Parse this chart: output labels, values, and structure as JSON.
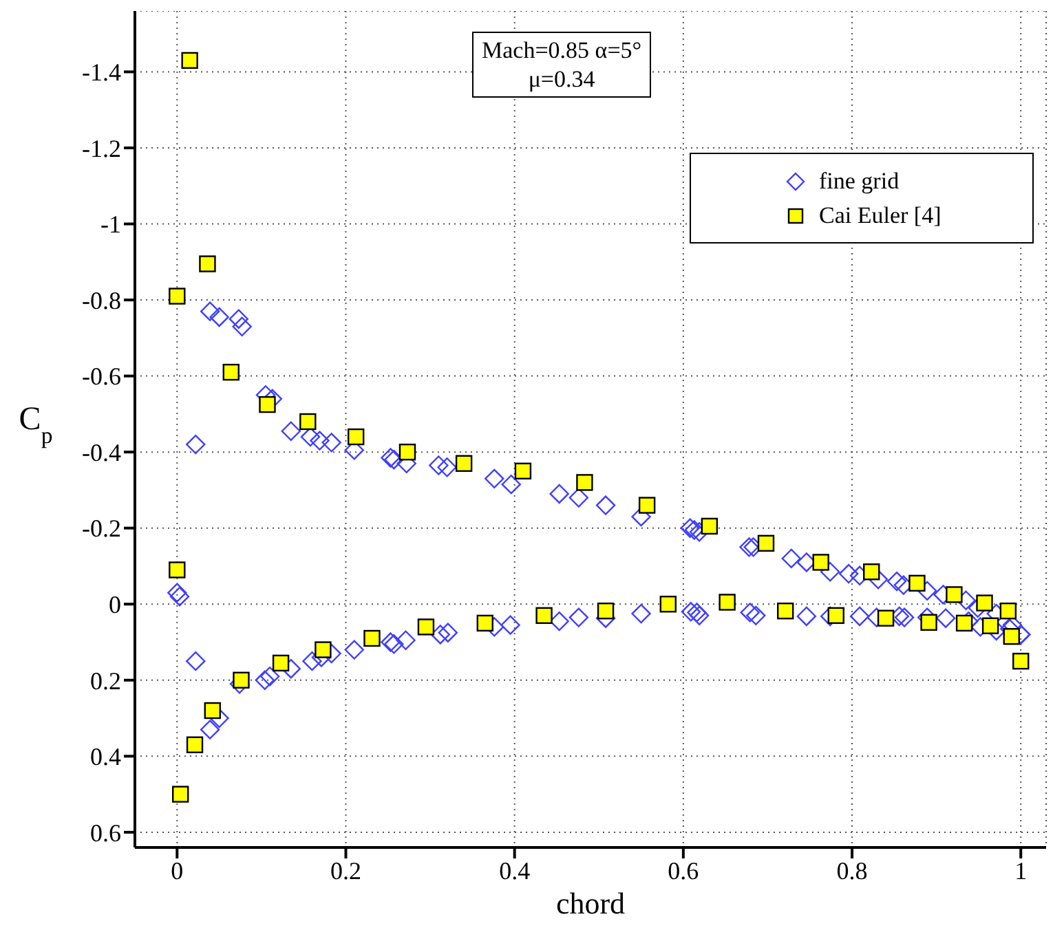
{
  "chart_data": {
    "type": "scatter",
    "xlabel": "chord",
    "ylabel": "C$_{p}$",
    "annotations": [
      "Mach=0.85  α=5°",
      "μ=0.34"
    ],
    "xlim": [
      -0.05,
      1.03
    ],
    "xticks": [
      0,
      0.2,
      0.4,
      0.6,
      0.8,
      1
    ],
    "ylim": [
      0.64,
      -1.56
    ],
    "yticks": [
      -1.4,
      -1.2,
      -1,
      -0.8,
      -0.6,
      -0.4,
      -0.2,
      0,
      0.2,
      0.4,
      0.6
    ],
    "grid": true,
    "legend": "top right",
    "series": [
      {
        "name": "fine grid",
        "color": "#4040ff",
        "marker": "diamond",
        "x": [
          0.039,
          0.05,
          0.073,
          0.077,
          0.105,
          0.113,
          0.135,
          0.158,
          0.169,
          0.183,
          0.022,
          0.21,
          0.253,
          0.257,
          0.272,
          0.31,
          0.32,
          0.376,
          0.396,
          0.453,
          0.476,
          0.508,
          0.55,
          0.608,
          0.613,
          0.619,
          0.678,
          0.683,
          0.728,
          0.746,
          0.774,
          0.796,
          0.809,
          0.831,
          0.853,
          0.861,
          0.889,
          0.908,
          0.935,
          0.949,
          0.971,
          0.99,
          1.0,
          0,
          0.003,
          0.022,
          0.039,
          0.05,
          0.074,
          0.104,
          0.11,
          0.135,
          0.16,
          0.171,
          0.183,
          0.21,
          0.253,
          0.257,
          0.271,
          0.312,
          0.321,
          0.376,
          0.395,
          0.453,
          0.476,
          0.508,
          0.55,
          0.609,
          0.616,
          0.619,
          0.679,
          0.686,
          0.746,
          0.774,
          0.809,
          0.829,
          0.856,
          0.862,
          0.889,
          0.911,
          0.938,
          0.952,
          0.971,
          0.987,
          1.0
        ],
        "values": [
          -0.77,
          -0.755,
          -0.75,
          -0.73,
          -0.55,
          -0.54,
          -0.455,
          -0.44,
          -0.43,
          -0.425,
          -0.42,
          -0.405,
          -0.385,
          -0.38,
          -0.37,
          -0.365,
          -0.36,
          -0.33,
          -0.315,
          -0.29,
          -0.28,
          -0.26,
          -0.23,
          -0.2,
          -0.195,
          -0.19,
          -0.15,
          -0.15,
          -0.12,
          -0.11,
          -0.085,
          -0.08,
          -0.075,
          -0.065,
          -0.06,
          -0.05,
          -0.035,
          -0.025,
          -0.01,
          0.01,
          0.025,
          0.055,
          0.08,
          -0.03,
          -0.02,
          0.15,
          0.33,
          0.3,
          0.21,
          0.2,
          0.19,
          0.17,
          0.15,
          0.14,
          0.13,
          0.12,
          0.1,
          0.105,
          0.095,
          0.08,
          0.075,
          0.06,
          0.055,
          0.045,
          0.035,
          0.037,
          0.025,
          0.02,
          0.022,
          0.03,
          0.022,
          0.03,
          0.032,
          0.032,
          0.032,
          0.035,
          0.032,
          0.035,
          0.035,
          0.037,
          0.045,
          0.06,
          0.07,
          0.065,
          0.08
        ]
      },
      {
        "name": "Cai Euler [4]",
        "color": "#ffff00",
        "marker": "square",
        "x": [
          0.015,
          0.036,
          0,
          0.064,
          0.107,
          0.155,
          0.212,
          0.273,
          0.34,
          0.41,
          0.483,
          0.557,
          0.631,
          0.698,
          0.763,
          0.823,
          0.877,
          0.921,
          0.957,
          0.985,
          0,
          0.004,
          0.021,
          0.042,
          0.076,
          0.123,
          0.173,
          0.231,
          0.295,
          0.365,
          0.435,
          0.508,
          0.582,
          0.652,
          0.721,
          0.781,
          0.84,
          0.891,
          0.933,
          0.964,
          0.989,
          1.0
        ],
        "values": [
          -1.43,
          -0.895,
          -0.81,
          -0.61,
          -0.525,
          -0.48,
          -0.44,
          -0.4,
          -0.37,
          -0.35,
          -0.32,
          -0.26,
          -0.205,
          -0.16,
          -0.11,
          -0.085,
          -0.055,
          -0.025,
          -0.003,
          0.018,
          -0.09,
          0.5,
          0.37,
          0.28,
          0.2,
          0.155,
          0.12,
          0.09,
          0.06,
          0.05,
          0.03,
          0.018,
          0.0,
          -0.005,
          0.018,
          0.03,
          0.037,
          0.048,
          0.05,
          0.057,
          0.085,
          0.15
        ]
      }
    ]
  }
}
